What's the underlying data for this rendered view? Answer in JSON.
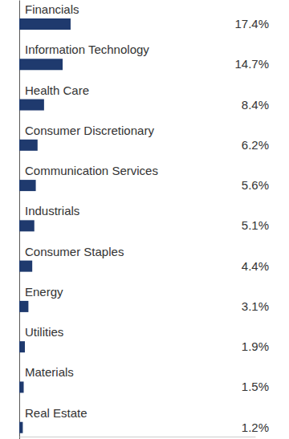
{
  "chart_data": {
    "type": "bar",
    "orientation": "horizontal",
    "categories": [
      "Financials",
      "Information Technology",
      "Health Care",
      "Consumer Discretionary",
      "Communication Services",
      "Industrials",
      "Consumer Staples",
      "Energy",
      "Utilities",
      "Materials",
      "Real Estate"
    ],
    "values": [
      17.4,
      14.7,
      8.4,
      6.2,
      5.6,
      5.1,
      4.4,
      3.1,
      1.9,
      1.5,
      1.2
    ],
    "value_labels": [
      "17.4%",
      "14.7%",
      "8.4%",
      "6.2%",
      "5.6%",
      "5.1%",
      "4.4%",
      "3.1%",
      "1.9%",
      "1.5%",
      "1.2%"
    ],
    "color": "#1f3a6e",
    "xlim": [
      0,
      80
    ],
    "data_labels": true,
    "tick_labels": false
  }
}
